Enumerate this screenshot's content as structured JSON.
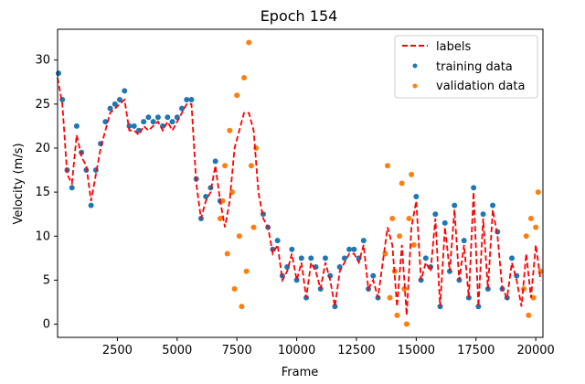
{
  "chart_data": {
    "type": "scatter",
    "title": "Epoch 154",
    "xlabel": "Frame",
    "ylabel": "Velocity (m/s)",
    "xlim": [
      0,
      20300
    ],
    "ylim": [
      -1.5,
      33.5
    ],
    "xticks": [
      2500,
      5000,
      7500,
      10000,
      12500,
      15000,
      17500,
      20000
    ],
    "xtick_labels": [
      "2500",
      "5000",
      "7500",
      "10000",
      "12500",
      "15000",
      "17500",
      "20000"
    ],
    "yticks": [
      0,
      5,
      10,
      15,
      20,
      25,
      30
    ],
    "ytick_labels": [
      "0",
      "5",
      "10",
      "15",
      "20",
      "25",
      "30"
    ],
    "legend_position": "top-right",
    "colors": {
      "labels": "#ff0000",
      "training": "#1f77b4",
      "validation": "#ff7f0e"
    },
    "series": [
      {
        "name": "labels",
        "style": "dashed-line",
        "x": [
          0,
          200,
          400,
          600,
          800,
          1000,
          1200,
          1400,
          1600,
          1800,
          2000,
          2200,
          2400,
          2600,
          2800,
          3000,
          3200,
          3400,
          3600,
          3800,
          4000,
          4200,
          4400,
          4600,
          4800,
          5000,
          5200,
          5400,
          5600,
          5800,
          6000,
          6200,
          6400,
          6600,
          6800,
          7000,
          7200,
          7400,
          7600,
          7800,
          8000,
          8200,
          8400,
          8600,
          8800,
          9000,
          9200,
          9400,
          9600,
          9800,
          10000,
          10200,
          10400,
          10600,
          10800,
          11000,
          11200,
          11400,
          11600,
          11800,
          12000,
          12200,
          12400,
          12600,
          12800,
          13000,
          13200,
          13400,
          13600,
          13800,
          14000,
          14200,
          14400,
          14600,
          14800,
          15000,
          15200,
          15400,
          15600,
          15800,
          16000,
          16200,
          16400,
          16600,
          16800,
          17000,
          17200,
          17400,
          17600,
          17800,
          18000,
          18200,
          18400,
          18600,
          18800,
          19000,
          19200,
          19400,
          19600,
          19800,
          20000,
          20200
        ],
        "y": [
          28,
          25,
          17,
          16,
          21.5,
          19,
          18,
          14,
          17,
          20,
          22,
          24,
          24.5,
          25,
          25.5,
          22,
          22,
          21.5,
          22.5,
          22,
          22.5,
          23,
          22,
          23,
          22,
          23,
          24,
          25,
          25,
          16,
          12,
          14,
          15,
          18,
          14,
          11,
          14,
          20,
          22,
          24,
          24,
          22,
          15,
          12,
          11,
          8,
          9,
          5,
          6,
          8,
          5,
          7,
          3,
          7,
          6,
          4,
          7,
          5,
          2,
          6,
          7,
          8,
          8,
          7,
          9,
          4,
          5,
          3,
          7,
          11,
          9,
          2,
          9,
          1,
          11,
          14,
          5,
          7,
          6,
          12,
          2,
          11,
          6,
          13,
          5,
          9,
          3,
          15,
          2,
          12,
          4,
          13,
          10,
          4,
          3,
          7,
          5,
          2,
          8,
          3,
          9,
          5
        ]
      },
      {
        "name": "training data",
        "style": "points",
        "x": [
          0,
          200,
          400,
          600,
          800,
          1000,
          1200,
          1400,
          1600,
          1800,
          2000,
          2200,
          2400,
          2600,
          2800,
          3000,
          3200,
          3400,
          3600,
          3800,
          4000,
          4200,
          4400,
          4600,
          4800,
          5000,
          5200,
          5400,
          5600,
          5800,
          6000,
          6200,
          6400,
          6600,
          6800,
          8600,
          8800,
          9000,
          9200,
          9400,
          9600,
          9800,
          10000,
          10200,
          10400,
          10600,
          10800,
          11000,
          11200,
          11400,
          11600,
          11800,
          12000,
          12200,
          12400,
          12600,
          12800,
          13000,
          13200,
          13400,
          15000,
          15200,
          15400,
          15600,
          15800,
          16000,
          16200,
          16400,
          16600,
          16800,
          17000,
          17200,
          17400,
          17600,
          17800,
          18000,
          18200,
          18400,
          18600,
          18800,
          19000,
          19200
        ],
        "y": [
          28.5,
          25.5,
          17.5,
          15.5,
          22.5,
          19.5,
          17.5,
          13.5,
          17.5,
          20.5,
          23,
          24.5,
          25,
          25.5,
          26.5,
          22.5,
          22.5,
          22,
          23,
          23.5,
          23,
          23.5,
          22.5,
          23.5,
          23,
          23.5,
          24.5,
          25.5,
          25.5,
          16.5,
          12,
          14.5,
          15.5,
          18.5,
          14,
          12.5,
          11,
          8.5,
          9.5,
          5.5,
          6.5,
          8.5,
          5,
          7.5,
          3,
          7.5,
          6.5,
          4,
          7.5,
          5.5,
          2,
          6.5,
          7.5,
          8.5,
          8.5,
          7.5,
          9.5,
          4,
          5.5,
          3,
          14.5,
          5,
          7.5,
          6.5,
          12.5,
          2,
          11.5,
          6,
          13.5,
          5,
          9.5,
          3,
          15.5,
          2,
          12.5,
          4,
          13.5,
          10.5,
          4,
          3,
          7.5,
          5.5
        ]
      },
      {
        "name": "validation data",
        "style": "points",
        "x": [
          6800,
          6900,
          7000,
          7100,
          7200,
          7300,
          7400,
          7500,
          7600,
          7700,
          7800,
          7900,
          8000,
          8100,
          8200,
          8300,
          13700,
          13800,
          13900,
          14000,
          14100,
          14200,
          14300,
          14400,
          14500,
          14600,
          14700,
          14800,
          14900,
          19500,
          19600,
          19700,
          19800,
          19900,
          20000,
          20100,
          20200
        ],
        "y": [
          12,
          14,
          18,
          8,
          22,
          15,
          4,
          26,
          10,
          2,
          28,
          6,
          32,
          18,
          11,
          20,
          8,
          18,
          3,
          12,
          6,
          1,
          10,
          16,
          4,
          0,
          12,
          17,
          9,
          4,
          10,
          1,
          12,
          3,
          11,
          15,
          6
        ]
      }
    ]
  }
}
